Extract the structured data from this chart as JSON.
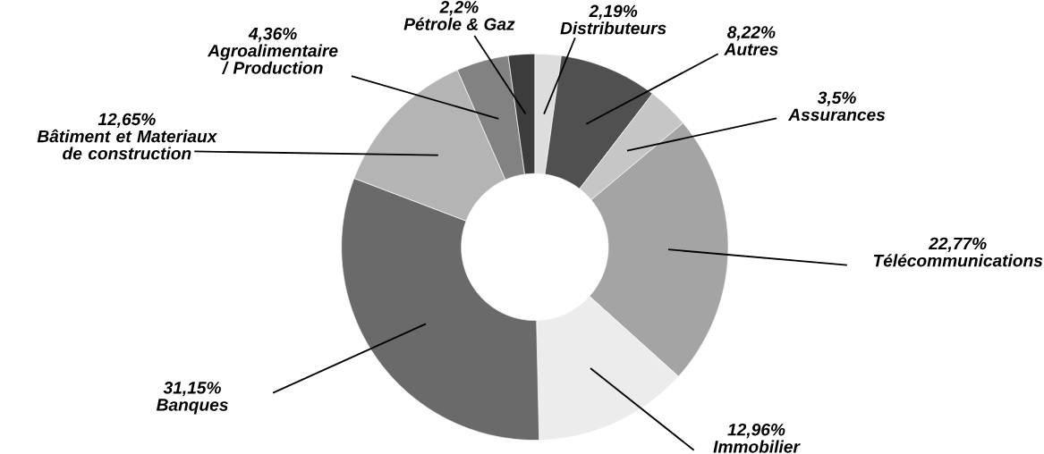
{
  "chart_data": {
    "type": "donut",
    "categories": [
      "Distributeurs",
      "Autres",
      "Assurances",
      "Télécommunications",
      "Immobilier",
      "Banques",
      "Bâtiment et Materiaux de construction",
      "Agroalimentaire / Production",
      "Pétrole & Gaz"
    ],
    "values": [
      2.19,
      8.22,
      3.5,
      22.77,
      12.96,
      31.15,
      12.65,
      4.36,
      2.2
    ],
    "value_labels": [
      "2,19%",
      "8,22%",
      "3,5%",
      "22,77%",
      "12,96%",
      "31,15%",
      "12,65%",
      "4,36%",
      "2,2%"
    ],
    "colors": [
      "#dddddd",
      "#505050",
      "#c6c6c6",
      "#a4a4a4",
      "#ececec",
      "#6a6a6a",
      "#b4b4b4",
      "#828282",
      "#3c3c3c"
    ]
  }
}
